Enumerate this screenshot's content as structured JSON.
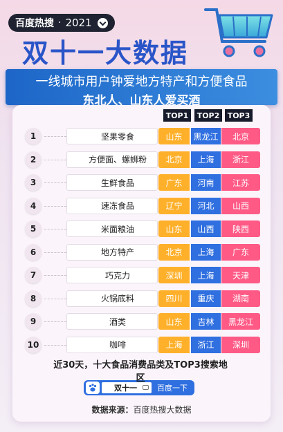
{
  "header": {
    "brand": "百度热搜",
    "separator": "·",
    "year": "2021",
    "title": "双十一大数据",
    "subtitle_line1": "一线城市用户钟爱地方特产和方便食品",
    "subtitle_line2": "东北人、山东人爱买酒"
  },
  "columns": [
    "TOP1",
    "TOP2",
    "TOP3"
  ],
  "rows": [
    {
      "rank": "1",
      "category": "坚果零食",
      "top1": "山东",
      "top2": "黑龙江",
      "top3": "北京"
    },
    {
      "rank": "2",
      "category": "方便面、螺蛳粉",
      "top1": "北京",
      "top2": "上海",
      "top3": "浙江"
    },
    {
      "rank": "3",
      "category": "生鲜食品",
      "top1": "广东",
      "top2": "河南",
      "top3": "江苏"
    },
    {
      "rank": "4",
      "category": "速冻食品",
      "top1": "辽宁",
      "top2": "河北",
      "top3": "山西"
    },
    {
      "rank": "5",
      "category": "米面粮油",
      "top1": "山东",
      "top2": "山西",
      "top3": "陕西"
    },
    {
      "rank": "6",
      "category": "地方特产",
      "top1": "北京",
      "top2": "上海",
      "top3": "广东"
    },
    {
      "rank": "7",
      "category": "巧克力",
      "top1": "深圳",
      "top2": "上海",
      "top3": "天津"
    },
    {
      "rank": "8",
      "category": "火锅底料",
      "top1": "四川",
      "top2": "重庆",
      "top3": "湖南"
    },
    {
      "rank": "9",
      "category": "酒类",
      "top1": "山东",
      "top2": "吉林",
      "top3": "黑龙江"
    },
    {
      "rank": "10",
      "category": "咖啡",
      "top1": "上海",
      "top2": "浙江",
      "top3": "深圳"
    }
  ],
  "footnote": "近30天，十大食品消费品类及TOP3搜索地区",
  "search": {
    "query": "双十一",
    "button": "百度一下"
  },
  "source": {
    "label": "数据来源：",
    "value": "百度热搜大数据"
  },
  "colors": {
    "top1": "#ffb02a",
    "top2": "#2f6fe0",
    "top3": "#ff5a86",
    "title": "#2a55c8"
  }
}
